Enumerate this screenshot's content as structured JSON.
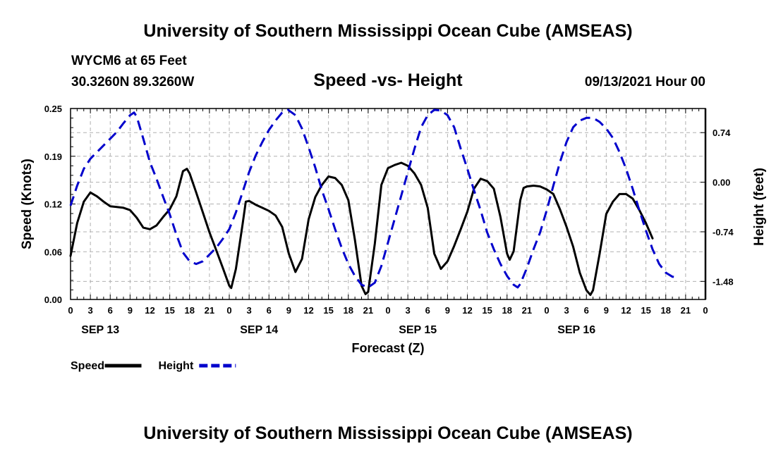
{
  "header": {
    "title_top": "University of Southern Mississippi Ocean Cube (AMSEAS)",
    "title_bottom": "University of Southern Mississippi Ocean Cube (AMSEAS)",
    "station": "WYCM6 at 65 Feet",
    "coords": "30.3260N  89.3260W",
    "subtitle": "Speed -vs- Height",
    "date": "09/13/2021 Hour 00"
  },
  "chart_data": {
    "type": "line",
    "title": "Speed -vs- Height",
    "xlabel": "Forecast (Z)",
    "ylabel": "Speed (Knots)",
    "ylabel_right": "Height (feet)",
    "x_range_hours": [
      0,
      96
    ],
    "ylim_left": [
      0,
      0.25
    ],
    "ylim_right": [
      -1.75,
      1.1
    ],
    "left_ticks": [
      "0.00",
      "0.06",
      "0.12",
      "0.19",
      "0.25"
    ],
    "left_tick_values": [
      0.0,
      0.0625,
      0.125,
      0.1875,
      0.25
    ],
    "right_ticks": [
      "-1.48",
      "-0.74",
      "0.00",
      "0.74"
    ],
    "right_tick_values": [
      -1.48,
      -0.74,
      0.0,
      0.74
    ],
    "x_tick_labels": [
      "0",
      "3",
      "6",
      "9",
      "12",
      "15",
      "18",
      "21",
      "0",
      "3",
      "6",
      "9",
      "12",
      "15",
      "18",
      "21",
      "0",
      "3",
      "6",
      "9",
      "12",
      "15",
      "18",
      "21",
      "0",
      "3",
      "6",
      "9",
      "12",
      "15",
      "18",
      "21",
      "0"
    ],
    "day_labels": [
      "SEP 13",
      "SEP 14",
      "SEP 15",
      "SEP 16"
    ],
    "grid": true,
    "legend_position": "bottom-left",
    "series": [
      {
        "name": "Speed",
        "axis": "left",
        "color": "#000000",
        "dash": "solid",
        "points": [
          [
            0,
            0.057
          ],
          [
            1,
            0.1
          ],
          [
            2,
            0.128
          ],
          [
            3,
            0.14
          ],
          [
            4,
            0.135
          ],
          [
            5,
            0.128
          ],
          [
            6,
            0.122
          ],
          [
            7,
            0.121
          ],
          [
            8,
            0.12
          ],
          [
            9,
            0.117
          ],
          [
            10,
            0.107
          ],
          [
            11,
            0.094
          ],
          [
            12,
            0.092
          ],
          [
            13,
            0.097
          ],
          [
            14,
            0.108
          ],
          [
            15,
            0.118
          ],
          [
            16,
            0.135
          ],
          [
            17,
            0.168
          ],
          [
            17.6,
            0.171
          ],
          [
            18,
            0.165
          ],
          [
            19,
            0.14
          ],
          [
            20,
            0.114
          ],
          [
            21,
            0.088
          ],
          [
            22,
            0.065
          ],
          [
            23,
            0.042
          ],
          [
            24,
            0.018
          ],
          [
            24.3,
            0.015
          ],
          [
            25,
            0.04
          ],
          [
            26,
            0.098
          ],
          [
            26.5,
            0.128
          ],
          [
            27,
            0.129
          ],
          [
            28,
            0.124
          ],
          [
            29,
            0.12
          ],
          [
            30,
            0.116
          ],
          [
            31,
            0.11
          ],
          [
            32,
            0.095
          ],
          [
            33,
            0.06
          ],
          [
            34,
            0.036
          ],
          [
            35,
            0.053
          ],
          [
            36,
            0.105
          ],
          [
            37,
            0.134
          ],
          [
            38,
            0.15
          ],
          [
            39,
            0.161
          ],
          [
            40,
            0.159
          ],
          [
            41,
            0.15
          ],
          [
            42,
            0.13
          ],
          [
            43,
            0.078
          ],
          [
            44,
            0.018
          ],
          [
            44.6,
            0.007
          ],
          [
            45,
            0.01
          ],
          [
            46,
            0.073
          ],
          [
            47,
            0.15
          ],
          [
            48,
            0.172
          ],
          [
            49,
            0.176
          ],
          [
            50,
            0.179
          ],
          [
            51,
            0.175
          ],
          [
            52,
            0.165
          ],
          [
            53,
            0.15
          ],
          [
            54,
            0.12
          ],
          [
            55,
            0.06
          ],
          [
            56,
            0.04
          ],
          [
            57,
            0.05
          ],
          [
            58,
            0.07
          ],
          [
            59,
            0.092
          ],
          [
            60,
            0.115
          ],
          [
            61,
            0.145
          ],
          [
            62,
            0.158
          ],
          [
            63,
            0.155
          ],
          [
            64,
            0.145
          ],
          [
            65,
            0.108
          ],
          [
            66,
            0.06
          ],
          [
            66.4,
            0.052
          ],
          [
            67,
            0.063
          ],
          [
            68,
            0.13
          ],
          [
            68.5,
            0.146
          ],
          [
            69,
            0.148
          ],
          [
            70,
            0.149
          ],
          [
            71,
            0.148
          ],
          [
            72,
            0.144
          ],
          [
            73,
            0.138
          ],
          [
            74,
            0.118
          ],
          [
            75,
            0.095
          ],
          [
            76,
            0.069
          ],
          [
            77,
            0.035
          ],
          [
            78,
            0.012
          ],
          [
            78.6,
            0.006
          ],
          [
            79,
            0.012
          ],
          [
            80,
            0.06
          ],
          [
            81,
            0.112
          ],
          [
            82,
            0.128
          ],
          [
            83,
            0.138
          ],
          [
            84,
            0.138
          ],
          [
            85,
            0.132
          ],
          [
            86,
            0.117
          ],
          [
            87,
            0.1
          ],
          [
            88,
            0.08
          ]
        ]
      },
      {
        "name": "Height",
        "axis": "right",
        "color": "#0000cc",
        "dash": "dashed",
        "points": [
          [
            0,
            -0.35
          ],
          [
            1,
            -0.05
          ],
          [
            2,
            0.2
          ],
          [
            3,
            0.35
          ],
          [
            4,
            0.45
          ],
          [
            5,
            0.55
          ],
          [
            6,
            0.65
          ],
          [
            7,
            0.75
          ],
          [
            8,
            0.88
          ],
          [
            9,
            1.0
          ],
          [
            9.6,
            1.04
          ],
          [
            10,
            0.98
          ],
          [
            11,
            0.65
          ],
          [
            12,
            0.3
          ],
          [
            13,
            0.05
          ],
          [
            14,
            -0.22
          ],
          [
            15,
            -0.48
          ],
          [
            16,
            -0.78
          ],
          [
            17,
            -1.05
          ],
          [
            18,
            -1.18
          ],
          [
            19,
            -1.22
          ],
          [
            20,
            -1.18
          ],
          [
            21,
            -1.08
          ],
          [
            22,
            -0.98
          ],
          [
            23,
            -0.85
          ],
          [
            24,
            -0.7
          ],
          [
            25,
            -0.45
          ],
          [
            26,
            -0.15
          ],
          [
            27,
            0.15
          ],
          [
            28,
            0.4
          ],
          [
            29,
            0.6
          ],
          [
            30,
            0.78
          ],
          [
            31,
            0.92
          ],
          [
            32,
            1.04
          ],
          [
            32.9,
            1.08
          ],
          [
            34,
            1.0
          ],
          [
            35,
            0.8
          ],
          [
            36,
            0.52
          ],
          [
            37,
            0.22
          ],
          [
            38,
            -0.12
          ],
          [
            39,
            -0.4
          ],
          [
            40,
            -0.7
          ],
          [
            41,
            -0.98
          ],
          [
            42,
            -1.22
          ],
          [
            43,
            -1.4
          ],
          [
            44,
            -1.53
          ],
          [
            45,
            -1.57
          ],
          [
            46,
            -1.5
          ],
          [
            47,
            -1.25
          ],
          [
            48,
            -0.9
          ],
          [
            49,
            -0.55
          ],
          [
            50,
            -0.2
          ],
          [
            51,
            0.15
          ],
          [
            52,
            0.5
          ],
          [
            53,
            0.82
          ],
          [
            54,
            1.0
          ],
          [
            55,
            1.08
          ],
          [
            56,
            1.07
          ],
          [
            57,
            1.0
          ],
          [
            58,
            0.82
          ],
          [
            59,
            0.5
          ],
          [
            60,
            0.2
          ],
          [
            61,
            -0.12
          ],
          [
            62,
            -0.42
          ],
          [
            63,
            -0.75
          ],
          [
            64,
            -1.0
          ],
          [
            65,
            -1.22
          ],
          [
            66,
            -1.4
          ],
          [
            67,
            -1.53
          ],
          [
            67.6,
            -1.57
          ],
          [
            68,
            -1.52
          ],
          [
            69,
            -1.28
          ],
          [
            70,
            -1.0
          ],
          [
            71,
            -0.75
          ],
          [
            72,
            -0.42
          ],
          [
            73,
            -0.05
          ],
          [
            74,
            0.3
          ],
          [
            75,
            0.6
          ],
          [
            76,
            0.82
          ],
          [
            77,
            0.92
          ],
          [
            78,
            0.96
          ],
          [
            79,
            0.96
          ],
          [
            80,
            0.9
          ],
          [
            81,
            0.8
          ],
          [
            82,
            0.66
          ],
          [
            83,
            0.45
          ],
          [
            84,
            0.2
          ],
          [
            85,
            -0.1
          ],
          [
            86,
            -0.42
          ],
          [
            87,
            -0.72
          ],
          [
            88,
            -1.0
          ],
          [
            89,
            -1.22
          ],
          [
            90,
            -1.35
          ],
          [
            91,
            -1.41
          ],
          [
            92,
            -1.42
          ]
        ]
      }
    ]
  }
}
